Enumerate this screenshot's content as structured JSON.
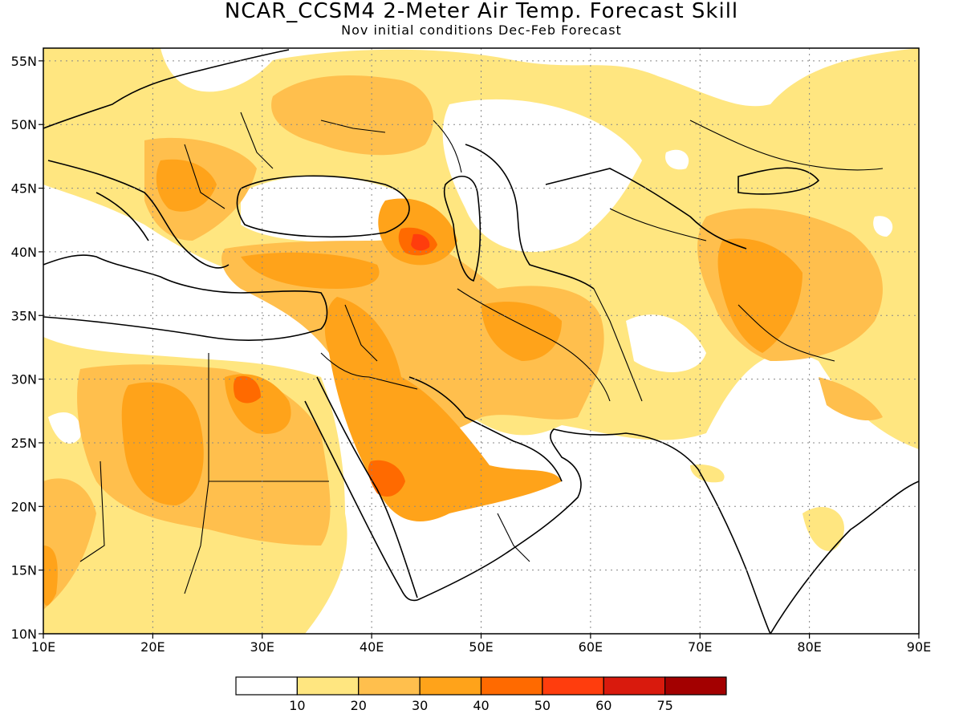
{
  "title": "NCAR_CCSM4 2-Meter Air Temp. Forecast Skill",
  "subtitle": "Nov initial conditions  Dec-Feb Forecast",
  "map": {
    "lon_range": [
      10,
      90
    ],
    "lat_range": [
      10,
      56
    ],
    "x_ticks": [
      "10E",
      "20E",
      "30E",
      "40E",
      "50E",
      "60E",
      "70E",
      "80E",
      "90E"
    ],
    "y_ticks": [
      "10N",
      "15N",
      "20N",
      "25N",
      "30N",
      "35N",
      "40N",
      "45N",
      "50N",
      "55N"
    ],
    "grid": "dotted"
  },
  "colorbar": {
    "colors": [
      "#ffffff",
      "#ffe680",
      "#ffbf4d",
      "#ffa31a",
      "#ff6a00",
      "#ff3d0d",
      "#d91a0d",
      "#a30000"
    ],
    "labels": [
      "10",
      "20",
      "30",
      "40",
      "50",
      "60",
      "75"
    ]
  }
}
